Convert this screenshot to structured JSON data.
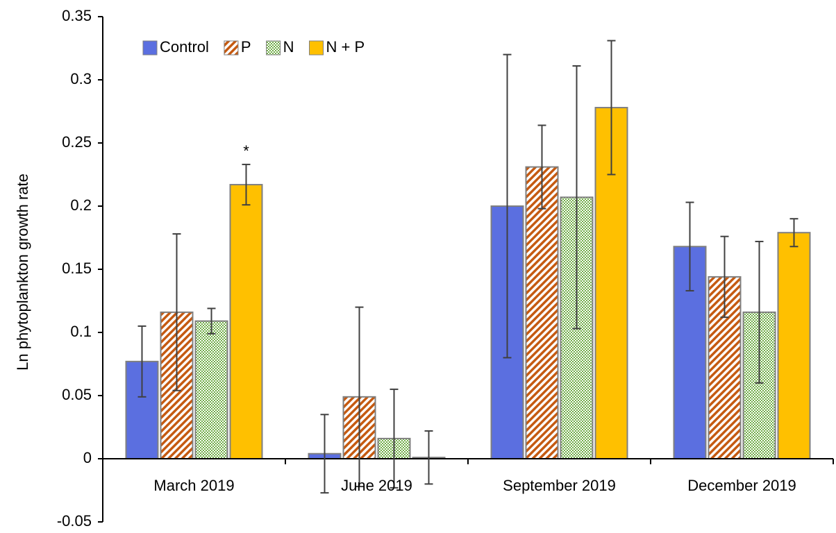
{
  "chart_data": {
    "type": "bar",
    "y_label": "Ln phytoplankton growth rate",
    "categories": [
      "March 2019",
      "June 2019",
      "September 2019",
      "December 2019"
    ],
    "series": [
      {
        "name": "Control",
        "color": "#5b6fe0",
        "pattern": "solid",
        "values": [
          0.077,
          0.004,
          0.2,
          0.168
        ],
        "errors": [
          0.028,
          0.031,
          0.12,
          0.035
        ]
      },
      {
        "name": "P",
        "color": "#c55a11",
        "pattern": "diagonal",
        "values": [
          0.116,
          0.049,
          0.231,
          0.144
        ],
        "errors": [
          0.062,
          0.071,
          0.033,
          0.032
        ]
      },
      {
        "name": "N",
        "color": "#70ad47",
        "pattern": "dots",
        "values": [
          0.109,
          0.016,
          0.207,
          0.116
        ],
        "errors": [
          0.01,
          0.039,
          0.104,
          0.056
        ]
      },
      {
        "name": "N + P",
        "color": "#ffc000",
        "pattern": "solid",
        "values": [
          0.217,
          0.001,
          0.278,
          0.179
        ],
        "errors": [
          0.016,
          0.021,
          0.053,
          0.011
        ]
      }
    ],
    "annotations": [
      {
        "text": "*",
        "category": "March 2019",
        "series": "N + P"
      }
    ],
    "ylim": [
      -0.05,
      0.35
    ],
    "yticks": [
      -0.05,
      0,
      0.05,
      0.1,
      0.15,
      0.2,
      0.25,
      0.3,
      0.35
    ],
    "grid": false,
    "legend": "top-left"
  }
}
